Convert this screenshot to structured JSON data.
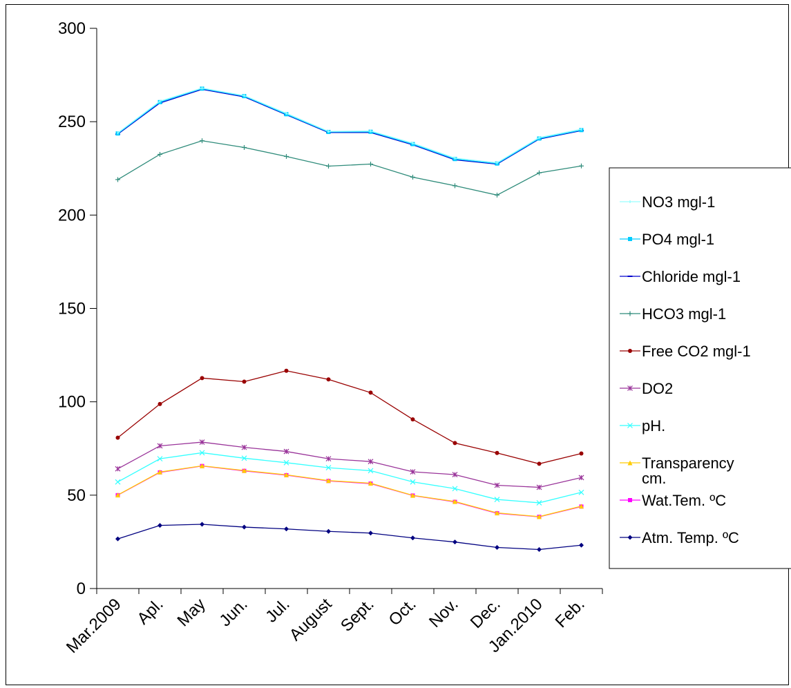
{
  "chart_data": {
    "type": "line",
    "title": "",
    "xlabel": "",
    "ylabel": "",
    "ylim": [
      0,
      300
    ],
    "yticks": [
      0,
      50,
      100,
      150,
      200,
      250,
      300
    ],
    "categories": [
      "Mar.2009",
      "Apl.",
      "May",
      "Jun.",
      "Jul.",
      "August",
      "Sept.",
      "Oct.",
      "Nov.",
      "Dec.",
      "Jan.2010",
      "Feb."
    ],
    "grid": false,
    "legend_position": "right",
    "series": [
      {
        "name": "NO3 mgl-1",
        "color": "#99ffff",
        "marker": "tick",
        "values": [
          244,
          261,
          268,
          264,
          254.5,
          244.8,
          245,
          238.5,
          230.5,
          228,
          241.5,
          246
        ]
      },
      {
        "name": "PO4 mgl-1",
        "color": "#00ccff",
        "marker": "square",
        "values": [
          243.7,
          260.5,
          267.7,
          263.7,
          254,
          244.5,
          244.6,
          238,
          230,
          227.6,
          241,
          245.5
        ]
      },
      {
        "name": "Chloride mgl-1",
        "color": "#0000cc",
        "marker": "dash",
        "values": [
          243.3,
          260,
          267.3,
          263.3,
          253.7,
          244.2,
          244.2,
          237.6,
          229.6,
          227.3,
          240.7,
          245.2
        ]
      },
      {
        "name": "HCO3 mgl-1",
        "color": "#2e8b7a",
        "marker": "plus",
        "values": [
          219,
          232.5,
          239.8,
          236.2,
          231.4,
          226.2,
          227.3,
          220.3,
          215.7,
          210.7,
          222.6,
          226.3
        ]
      },
      {
        "name": "Free CO2 mgl-1",
        "color": "#990000",
        "marker": "circle",
        "values": [
          80.8,
          98.8,
          112.7,
          110.8,
          116.6,
          112,
          104.9,
          90.6,
          77.9,
          72.6,
          66.8,
          72.3
        ]
      },
      {
        "name": "DO2",
        "color": "#993399",
        "marker": "star",
        "values": [
          64.1,
          76.4,
          78.4,
          75.6,
          73.4,
          69.5,
          68,
          62.5,
          61,
          55.3,
          54.2,
          59.4
        ]
      },
      {
        "name": "pH.",
        "color": "#33ffff",
        "marker": "x",
        "values": [
          57.1,
          69.5,
          72.7,
          69.8,
          67.4,
          64.7,
          63.1,
          57.1,
          53.5,
          47.7,
          45.9,
          51.5
        ]
      },
      {
        "name": "Transparency cm.",
        "color": "#ffcc00",
        "marker": "triangle",
        "values": [
          50.1,
          62.4,
          65.7,
          63.2,
          60.9,
          57.8,
          56.4,
          49.9,
          46.6,
          40.5,
          38.5,
          44.1
        ]
      },
      {
        "name": "Wat.Tem. ºC",
        "color": "#ff00ff",
        "marker": "square",
        "values": [
          50,
          62.2,
          65.6,
          63,
          60.7,
          57.6,
          56.2,
          49.8,
          46.4,
          40.3,
          38.4,
          43.9
        ]
      },
      {
        "name": "Atm. Temp. ºC",
        "color": "#000080",
        "marker": "diamond",
        "values": [
          26.6,
          33.8,
          34.4,
          32.9,
          31.9,
          30.6,
          29.7,
          27.1,
          24.9,
          22,
          20.9,
          23.2
        ]
      }
    ]
  }
}
